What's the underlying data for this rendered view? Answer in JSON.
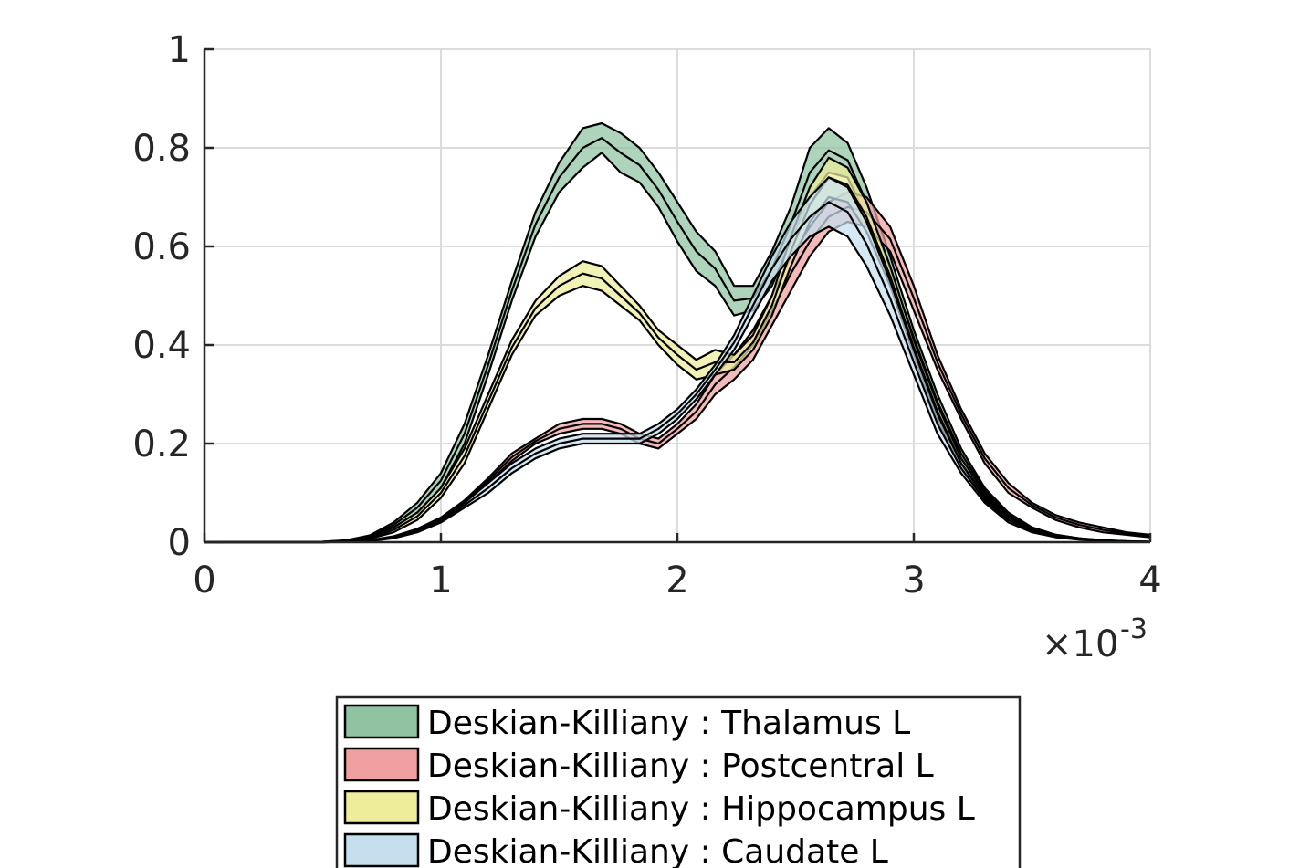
{
  "chart_data": {
    "type": "area",
    "title": "",
    "xlabel": "",
    "ylabel": "",
    "xlim": [
      0,
      4
    ],
    "ylim": [
      0,
      1
    ],
    "x_multiplier": "×10",
    "x_multiplier_exponent": "-3",
    "grid": true,
    "xticks": [
      0,
      1,
      2,
      3,
      4
    ],
    "xtick_labels": [
      "0",
      "1",
      "2",
      "3",
      "4"
    ],
    "yticks": [
      0,
      0.2,
      0.4,
      0.6,
      0.8,
      1
    ],
    "ytick_labels": [
      "0",
      "0.2",
      "0.4",
      "0.6",
      "0.8",
      "1"
    ],
    "legend_position": "bottom-center-outside",
    "series": [
      {
        "name": "Deskian-Killiany : Thalamus L",
        "color": "#8fc3a1",
        "x": [
          0,
          0.5,
          0.6,
          0.7,
          0.8,
          0.9,
          1.0,
          1.1,
          1.2,
          1.3,
          1.4,
          1.5,
          1.6,
          1.68,
          1.76,
          1.84,
          1.92,
          2.0,
          2.08,
          2.16,
          2.24,
          2.32,
          2.4,
          2.48,
          2.56,
          2.64,
          2.72,
          2.8,
          2.9,
          3.0,
          3.1,
          3.2,
          3.3,
          3.4,
          3.5,
          3.6,
          3.7,
          3.8,
          3.9,
          4.0
        ],
        "upper": [
          0,
          0.001,
          0.004,
          0.014,
          0.04,
          0.08,
          0.14,
          0.24,
          0.38,
          0.53,
          0.67,
          0.77,
          0.84,
          0.85,
          0.83,
          0.8,
          0.75,
          0.69,
          0.63,
          0.59,
          0.52,
          0.52,
          0.59,
          0.68,
          0.8,
          0.84,
          0.81,
          0.72,
          0.58,
          0.43,
          0.3,
          0.19,
          0.11,
          0.06,
          0.03,
          0.015,
          0.008,
          0.004,
          0.002,
          0.001
        ],
        "lower": [
          0,
          0,
          0.002,
          0.01,
          0.03,
          0.06,
          0.11,
          0.2,
          0.34,
          0.49,
          0.62,
          0.71,
          0.76,
          0.79,
          0.75,
          0.73,
          0.68,
          0.61,
          0.55,
          0.52,
          0.46,
          0.47,
          0.52,
          0.61,
          0.7,
          0.75,
          0.74,
          0.66,
          0.53,
          0.4,
          0.27,
          0.17,
          0.1,
          0.05,
          0.025,
          0.012,
          0.006,
          0.003,
          0.001,
          0.0005
        ]
      },
      {
        "name": "Deskian-Killiany : Postcentral L",
        "color": "#f0a0a0",
        "x": [
          0,
          0.5,
          0.6,
          0.7,
          0.8,
          0.9,
          1.0,
          1.1,
          1.2,
          1.3,
          1.4,
          1.5,
          1.6,
          1.68,
          1.76,
          1.84,
          1.92,
          2.0,
          2.08,
          2.16,
          2.24,
          2.32,
          2.4,
          2.48,
          2.56,
          2.64,
          2.72,
          2.8,
          2.9,
          3.0,
          3.1,
          3.2,
          3.3,
          3.4,
          3.5,
          3.6,
          3.7,
          3.8,
          3.9,
          4.0
        ],
        "upper": [
          0,
          0,
          0.001,
          0.004,
          0.012,
          0.027,
          0.05,
          0.085,
          0.13,
          0.18,
          0.21,
          0.24,
          0.25,
          0.25,
          0.24,
          0.22,
          0.21,
          0.24,
          0.28,
          0.34,
          0.38,
          0.43,
          0.5,
          0.58,
          0.64,
          0.69,
          0.71,
          0.7,
          0.64,
          0.52,
          0.38,
          0.27,
          0.18,
          0.12,
          0.08,
          0.055,
          0.04,
          0.03,
          0.02,
          0.015
        ],
        "lower": [
          0,
          0,
          0.001,
          0.003,
          0.01,
          0.024,
          0.045,
          0.08,
          0.12,
          0.165,
          0.2,
          0.22,
          0.23,
          0.23,
          0.22,
          0.2,
          0.19,
          0.22,
          0.25,
          0.3,
          0.33,
          0.37,
          0.44,
          0.51,
          0.58,
          0.63,
          0.65,
          0.64,
          0.59,
          0.47,
          0.35,
          0.25,
          0.16,
          0.1,
          0.07,
          0.045,
          0.03,
          0.02,
          0.015,
          0.01
        ]
      },
      {
        "name": "Deskian-Killiany : Hippocampus L",
        "color": "#eded9a",
        "x": [
          0,
          0.5,
          0.6,
          0.7,
          0.8,
          0.9,
          1.0,
          1.1,
          1.2,
          1.3,
          1.4,
          1.5,
          1.6,
          1.68,
          1.76,
          1.84,
          1.92,
          2.0,
          2.08,
          2.16,
          2.24,
          2.32,
          2.4,
          2.48,
          2.56,
          2.64,
          2.72,
          2.8,
          2.9,
          3.0,
          3.1,
          3.2,
          3.3,
          3.4,
          3.5,
          3.6,
          3.7,
          3.8,
          3.9,
          4.0
        ],
        "upper": [
          0,
          0.001,
          0.003,
          0.01,
          0.03,
          0.06,
          0.11,
          0.19,
          0.3,
          0.41,
          0.49,
          0.54,
          0.57,
          0.56,
          0.52,
          0.48,
          0.43,
          0.4,
          0.37,
          0.39,
          0.38,
          0.42,
          0.5,
          0.62,
          0.72,
          0.78,
          0.76,
          0.69,
          0.56,
          0.41,
          0.28,
          0.17,
          0.1,
          0.055,
          0.03,
          0.015,
          0.008,
          0.004,
          0.002,
          0.001
        ],
        "lower": [
          0,
          0,
          0.002,
          0.007,
          0.02,
          0.045,
          0.09,
          0.16,
          0.27,
          0.38,
          0.46,
          0.5,
          0.52,
          0.51,
          0.48,
          0.45,
          0.4,
          0.36,
          0.33,
          0.34,
          0.35,
          0.39,
          0.46,
          0.56,
          0.65,
          0.7,
          0.69,
          0.63,
          0.52,
          0.38,
          0.25,
          0.15,
          0.09,
          0.05,
          0.025,
          0.012,
          0.006,
          0.003,
          0.001,
          0.0005
        ]
      },
      {
        "name": "Deskian-Killiany : Caudate L",
        "color": "#c5dfee",
        "x": [
          0,
          0.5,
          0.6,
          0.7,
          0.8,
          0.9,
          1.0,
          1.1,
          1.2,
          1.3,
          1.4,
          1.5,
          1.6,
          1.68,
          1.76,
          1.84,
          1.92,
          2.0,
          2.08,
          2.16,
          2.24,
          2.32,
          2.4,
          2.48,
          2.56,
          2.64,
          2.72,
          2.8,
          2.9,
          3.0,
          3.1,
          3.2,
          3.3,
          3.4,
          3.5,
          3.6,
          3.7,
          3.8,
          3.9,
          4.0
        ],
        "upper": [
          0,
          0,
          0.001,
          0.003,
          0.01,
          0.025,
          0.045,
          0.08,
          0.12,
          0.16,
          0.19,
          0.21,
          0.22,
          0.22,
          0.22,
          0.22,
          0.24,
          0.27,
          0.31,
          0.36,
          0.42,
          0.5,
          0.58,
          0.65,
          0.7,
          0.74,
          0.72,
          0.65,
          0.53,
          0.39,
          0.26,
          0.16,
          0.09,
          0.05,
          0.025,
          0.012,
          0.006,
          0.003,
          0.001,
          0.0005
        ],
        "lower": [
          0,
          0,
          0.0005,
          0.002,
          0.008,
          0.02,
          0.04,
          0.07,
          0.1,
          0.14,
          0.17,
          0.19,
          0.2,
          0.2,
          0.2,
          0.2,
          0.22,
          0.25,
          0.29,
          0.34,
          0.39,
          0.46,
          0.53,
          0.58,
          0.62,
          0.64,
          0.62,
          0.56,
          0.46,
          0.34,
          0.22,
          0.14,
          0.08,
          0.04,
          0.02,
          0.01,
          0.005,
          0.002,
          0.001,
          0.0003
        ]
      }
    ]
  }
}
